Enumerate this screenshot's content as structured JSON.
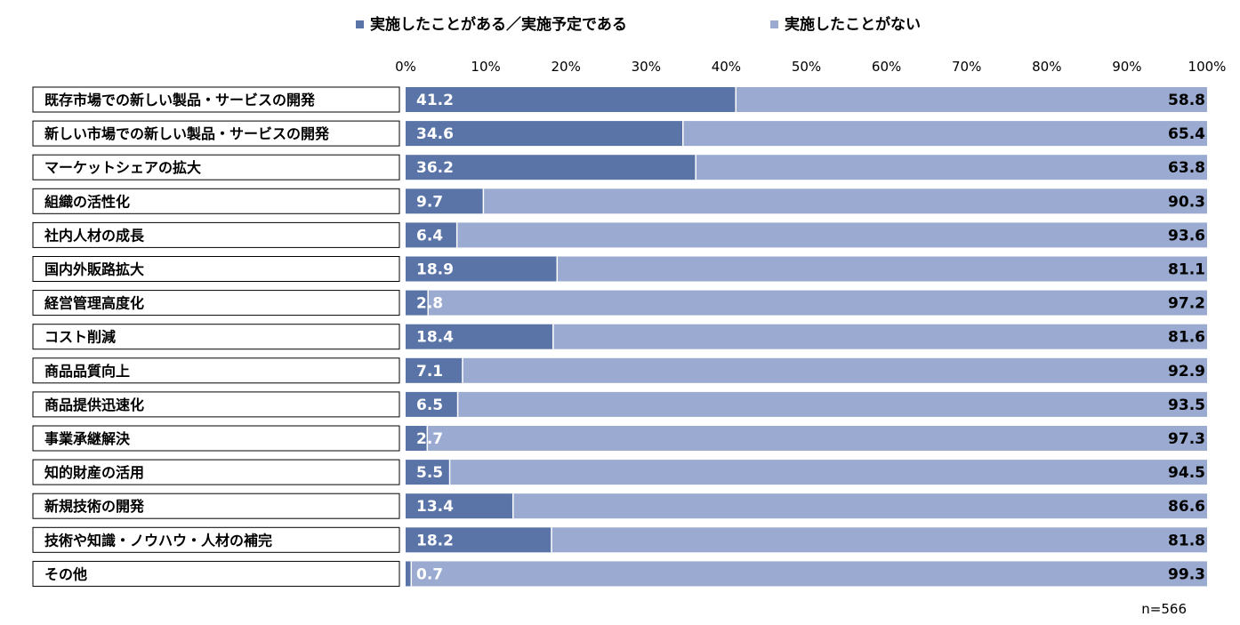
{
  "chart_data": {
    "type": "bar",
    "orientation": "horizontal",
    "stacked": true,
    "categories": [
      "既存市場での新しい製品・サービスの開発",
      "新しい市場での新しい製品・サービスの開発",
      "マーケットシェアの拡大",
      "組織の活性化",
      "社内人材の成長",
      "国内外販路拡大",
      "経営管理高度化",
      "コスト削減",
      "商品品質向上",
      "商品提供迅速化",
      "事業承継解決",
      "知的財産の活用",
      "新規技術の開発",
      "技術や知識・ノウハウ・人材の補完",
      "その他"
    ],
    "series": [
      {
        "name": "実施したことがある／実施予定である",
        "color": "#5a74a8",
        "values": [
          41.2,
          34.6,
          36.2,
          9.7,
          6.4,
          18.9,
          2.8,
          18.4,
          7.1,
          6.5,
          2.7,
          5.5,
          13.4,
          18.2,
          0.7
        ]
      },
      {
        "name": "実施したことがない",
        "color": "#9aaad0",
        "values": [
          58.8,
          65.4,
          63.8,
          90.3,
          93.6,
          81.1,
          97.2,
          81.6,
          92.9,
          93.5,
          97.3,
          94.5,
          86.6,
          81.8,
          99.3
        ]
      }
    ],
    "xlim": [
      0,
      100
    ],
    "xticks": [
      "0%",
      "10%",
      "20%",
      "30%",
      "40%",
      "50%",
      "60%",
      "70%",
      "80%",
      "90%",
      "100%"
    ],
    "legend_position": "top",
    "grid": false,
    "note": "n=566"
  }
}
